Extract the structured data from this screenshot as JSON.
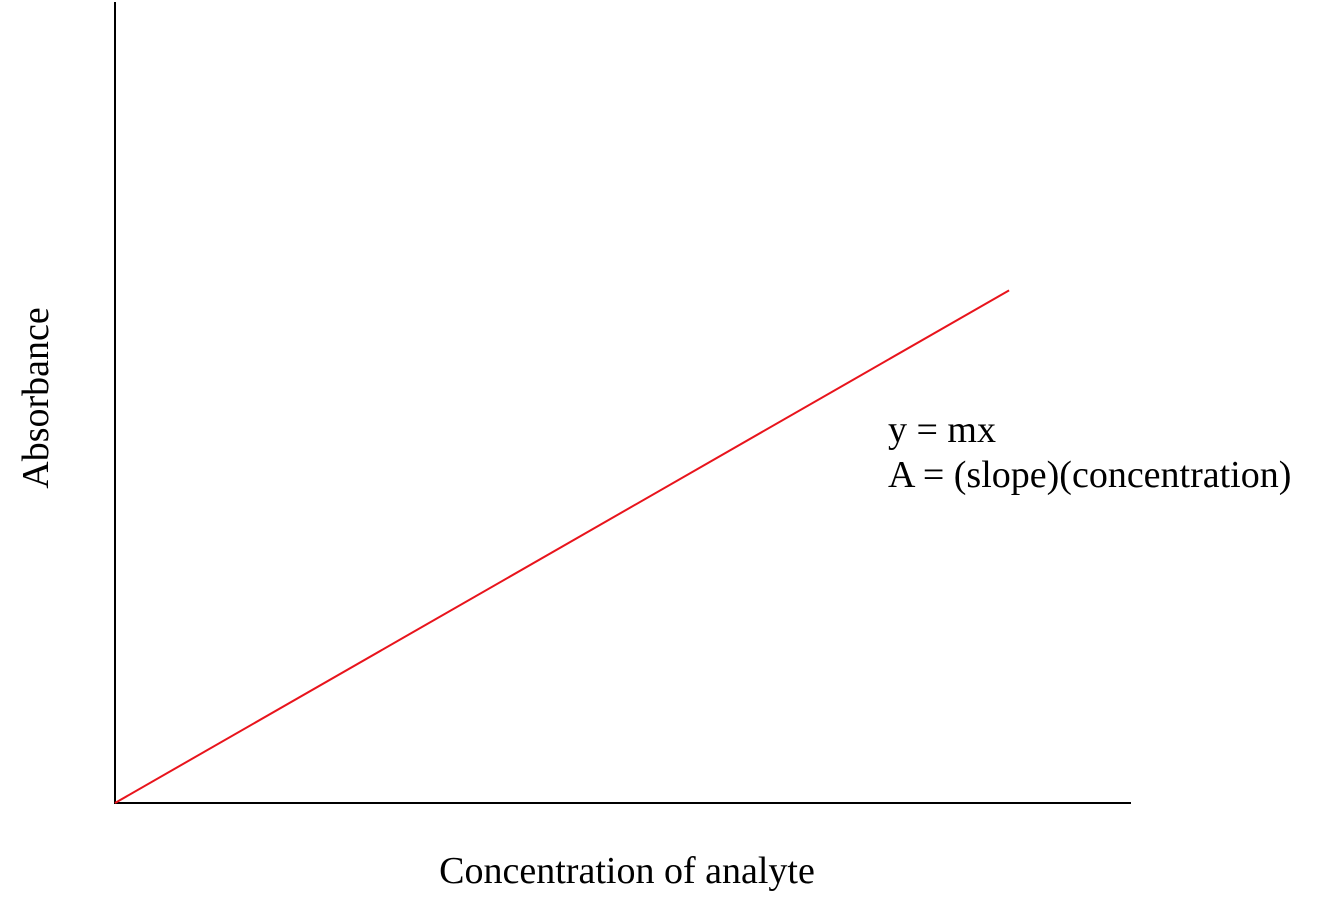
{
  "chart_data": {
    "type": "line",
    "title": "",
    "xlabel": "Concentration of analyte",
    "ylabel": "Absorbance",
    "xlim": [
      0,
      1
    ],
    "ylim": [
      0,
      1
    ],
    "grid": false,
    "series": [
      {
        "color": "#e8141c",
        "x": [
          0,
          0.88
        ],
        "y": [
          0,
          0.64
        ]
      }
    ],
    "annotations": [
      "y = mx",
      "A = (slope)(concentration)"
    ]
  }
}
